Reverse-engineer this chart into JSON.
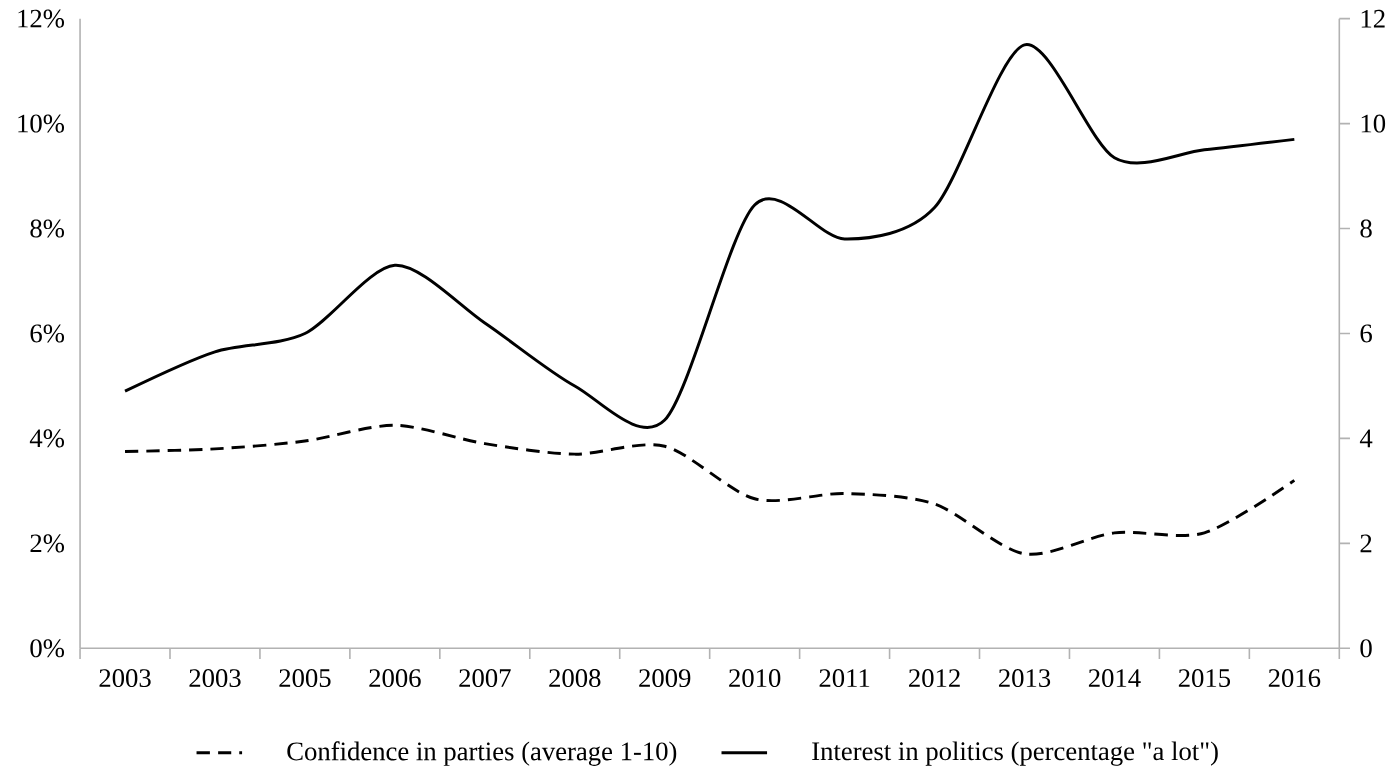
{
  "chart_data": {
    "type": "line",
    "categories": [
      "2003",
      "2003",
      "2005",
      "2006",
      "2007",
      "2008",
      "2009",
      "2010",
      "2011",
      "2012",
      "2013",
      "2014",
      "2015",
      "2016"
    ],
    "series": [
      {
        "name": "Confidence in parties (average 1-10)",
        "color": "#000000",
        "line_style": "dashed",
        "axis": "y2",
        "values": [
          3.75,
          3.8,
          3.95,
          4.25,
          3.9,
          3.7,
          3.85,
          2.85,
          2.95,
          2.75,
          1.8,
          2.2,
          2.2,
          3.2
        ]
      },
      {
        "name": "Interest in politics (percentage \"a lot\")",
        "color": "#000000",
        "line_style": "solid",
        "values": [
          4.9,
          5.65,
          6.0,
          7.3,
          6.2,
          5.0,
          4.35,
          8.45,
          7.8,
          8.4,
          11.5,
          9.35,
          9.5,
          9.7
        ]
      }
    ],
    "ylim": [
      0,
      12
    ],
    "yticks": [
      {
        "value": 0,
        "label": "0%"
      },
      {
        "value": 2,
        "label": "2%"
      },
      {
        "value": 4,
        "label": "4%"
      },
      {
        "value": 6,
        "label": "6%"
      },
      {
        "value": 8,
        "label": "8%"
      },
      {
        "value": 10,
        "label": "10%"
      },
      {
        "value": 12,
        "label": "12%"
      }
    ],
    "y2lim": [
      0,
      12
    ],
    "y2ticks": [
      0,
      2,
      4,
      6,
      8,
      10,
      12
    ],
    "grid": false,
    "legend": "bottom",
    "marker": "none"
  }
}
